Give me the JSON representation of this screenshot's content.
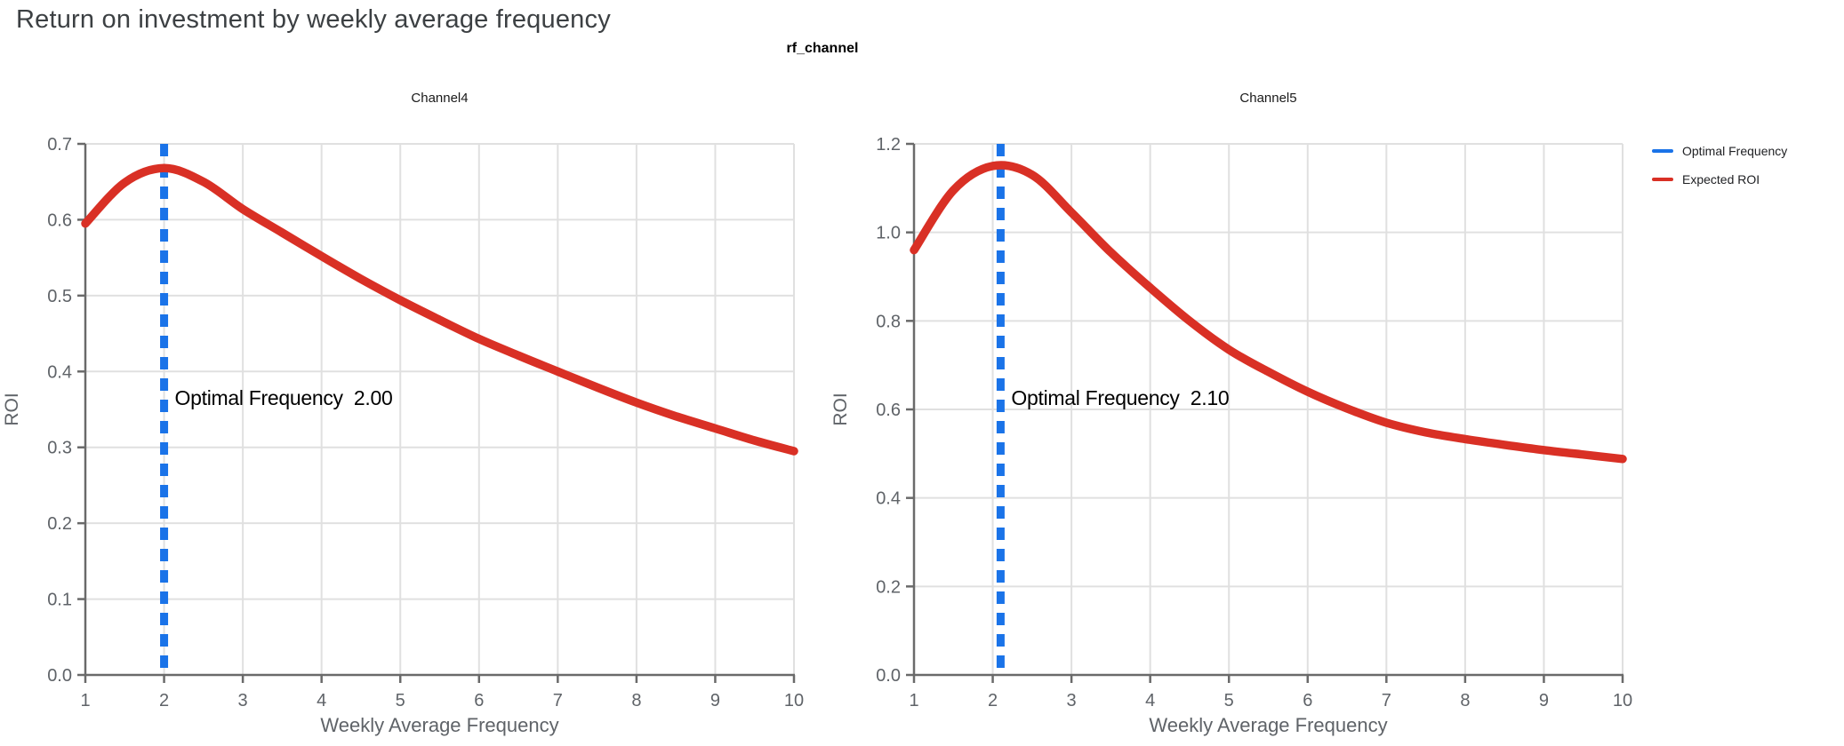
{
  "page": {
    "title": "Return on investment by weekly average frequency",
    "facet_header": "rf_channel"
  },
  "colors": {
    "curve_red": "#d93025",
    "optimal_blue": "#1a73e8",
    "grid": "#e0e0e0",
    "axis": "#6a6a6a",
    "tick_label": "#5f6368",
    "title_text": "#3c4043",
    "black_text": "#202124"
  },
  "legend": {
    "items": [
      {
        "label": "Optimal Frequency",
        "color": "#1a73e8"
      },
      {
        "label": "Expected ROI",
        "color": "#d93025"
      }
    ],
    "position": "figure-top-right"
  },
  "chart_data": [
    {
      "type": "line",
      "title": "Channel4",
      "xlabel": "Weekly Average Frequency",
      "ylabel": "ROI",
      "xlim": [
        1,
        10
      ],
      "ylim": [
        0,
        0.7
      ],
      "grid": true,
      "xticks": [
        1,
        2,
        3,
        4,
        5,
        6,
        7,
        8,
        9,
        10
      ],
      "xtick_labels": [
        "1",
        "2",
        "3",
        "4",
        "5",
        "6",
        "7",
        "8",
        "9",
        "10"
      ],
      "yticks": [
        0,
        0.1,
        0.2,
        0.3,
        0.4,
        0.5,
        0.6,
        0.7
      ],
      "ytick_labels": [
        "0.0",
        "0.1",
        "0.2",
        "0.3",
        "0.4",
        "0.5",
        "0.6",
        "0.7"
      ],
      "optimal_frequency": 2.0,
      "annotation_label": "Optimal Frequency",
      "annotation_value": "2.00",
      "series": [
        {
          "name": "Expected ROI",
          "x": [
            1,
            1.5,
            2,
            2.5,
            3,
            3.5,
            4,
            4.5,
            5,
            5.5,
            6,
            6.5,
            7,
            7.5,
            8,
            8.5,
            9,
            9.5,
            10
          ],
          "y": [
            0.595,
            0.649,
            0.668,
            0.65,
            0.614,
            0.583,
            0.552,
            0.522,
            0.494,
            0.468,
            0.443,
            0.421,
            0.4,
            0.379,
            0.359,
            0.341,
            0.325,
            0.309,
            0.295
          ]
        }
      ]
    },
    {
      "type": "line",
      "title": "Channel5",
      "xlabel": "Weekly Average Frequency",
      "ylabel": "ROI",
      "xlim": [
        1,
        10
      ],
      "ylim": [
        0,
        1.2
      ],
      "grid": true,
      "xticks": [
        1,
        2,
        3,
        4,
        5,
        6,
        7,
        8,
        9,
        10
      ],
      "xtick_labels": [
        "1",
        "2",
        "3",
        "4",
        "5",
        "6",
        "7",
        "8",
        "9",
        "10"
      ],
      "yticks": [
        0,
        0.2,
        0.4,
        0.6,
        0.8,
        1.0,
        1.2
      ],
      "ytick_labels": [
        "0.0",
        "0.2",
        "0.4",
        "0.6",
        "0.8",
        "1.0",
        "1.2"
      ],
      "optimal_frequency": 2.1,
      "annotation_label": "Optimal Frequency",
      "annotation_value": "2.10",
      "series": [
        {
          "name": "Expected ROI",
          "x": [
            1,
            1.5,
            2,
            2.5,
            3,
            3.5,
            4,
            4.5,
            5,
            5.5,
            6,
            6.5,
            7,
            7.5,
            8,
            8.5,
            9,
            9.5,
            10
          ],
          "y": [
            0.96,
            1.095,
            1.15,
            1.13,
            1.045,
            0.955,
            0.875,
            0.8,
            0.735,
            0.685,
            0.64,
            0.602,
            0.57,
            0.548,
            0.533,
            0.52,
            0.508,
            0.498,
            0.488
          ]
        }
      ]
    }
  ]
}
